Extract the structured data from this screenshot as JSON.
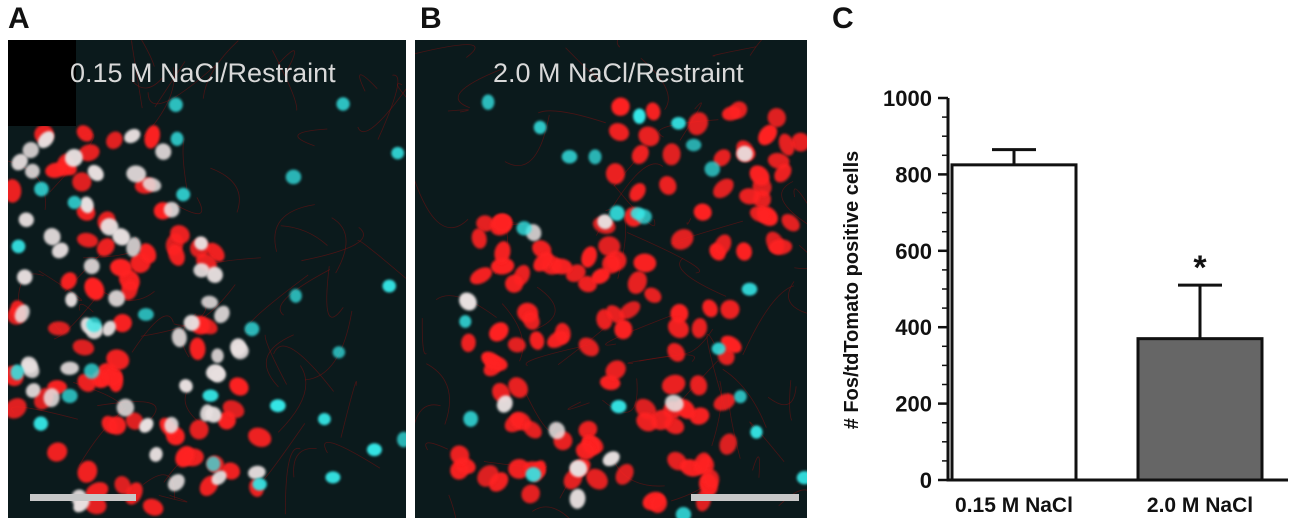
{
  "panels": {
    "a": {
      "letter": "A",
      "title": "0.15 M NaCl/Restraint"
    },
    "b": {
      "letter": "B",
      "title": "2.0 M NaCl/Restraint"
    },
    "c": {
      "letter": "C"
    }
  },
  "colors": {
    "tdtomato": "#ff2020",
    "fos": "#35e6e6",
    "double": "#e8e0e0",
    "bar_group1": "#ffffff",
    "bar_group2": "#666666",
    "background_dark": "#0b1a1c"
  },
  "chart_data": {
    "type": "bar",
    "categories": [
      "0.15 M NaCl",
      "2.0 M NaCl"
    ],
    "values": [
      825,
      370
    ],
    "errors": [
      40,
      140
    ],
    "bar_colors": [
      "#ffffff",
      "#666666"
    ],
    "ylabel": "# Fos/tdTomato positive cells",
    "xlabel": "",
    "title": "",
    "ylim": [
      0,
      1000
    ],
    "yticks": [
      0,
      200,
      400,
      600,
      800,
      1000
    ],
    "significance": {
      "category": "2.0 M NaCl",
      "marker": "*"
    },
    "grid": false
  }
}
